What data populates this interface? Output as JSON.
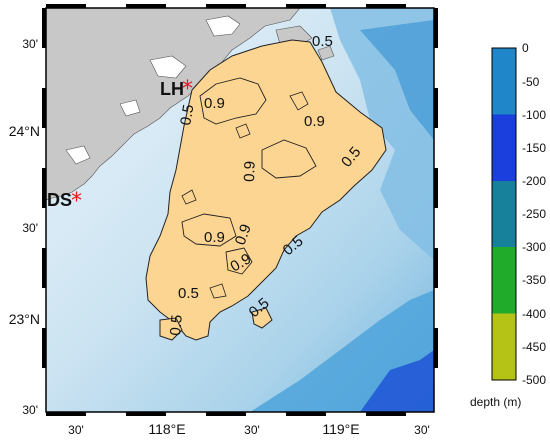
{
  "map": {
    "lat_labels": [
      "30'",
      "24°N",
      "30'",
      "23°N",
      "30'"
    ],
    "lon_labels": [
      "30'",
      "118°E",
      "30'",
      "119°E",
      "30'"
    ],
    "contour_labels": [
      "0.5",
      "0.5",
      "0.9",
      "0.9",
      "0.9",
      "0.9",
      "0.5",
      "0.9",
      "0.9",
      "0.5",
      "0.5",
      "0.5",
      "0.5"
    ],
    "stations": [
      {
        "name": "LH"
      },
      {
        "name": "DS"
      }
    ],
    "colors": {
      "land": "#c8c8c8",
      "region_fill": "#fcd592",
      "marker": "#e8161c"
    }
  },
  "colorbar": {
    "title": "depth (m)",
    "tick_labels": [
      "0",
      "-50",
      "-100",
      "-150",
      "-200",
      "-250",
      "-300",
      "-350",
      "-400",
      "-450",
      "-500"
    ],
    "bands": [
      {
        "range": [
          0,
          -100
        ],
        "color": "#1f86c9"
      },
      {
        "range": [
          -100,
          -200
        ],
        "color": "#1b3fdc"
      },
      {
        "range": [
          -200,
          -300
        ],
        "color": "#17819b"
      },
      {
        "range": [
          -300,
          -400
        ],
        "color": "#20ab2a"
      },
      {
        "range": [
          -400,
          -500
        ],
        "color": "#b5c316"
      }
    ]
  }
}
